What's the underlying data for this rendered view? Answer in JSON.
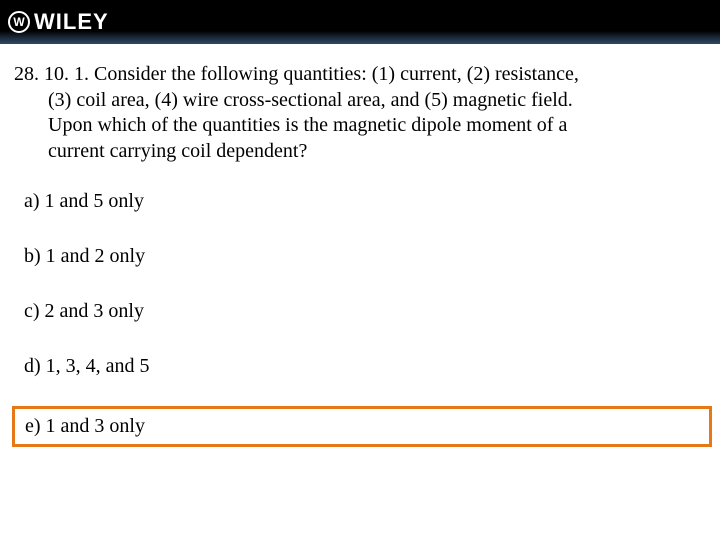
{
  "header": {
    "logo_text": "WILEY",
    "logo_icon_glyph": "W"
  },
  "question": {
    "number": "28. 10. 1.",
    "line1": "28. 10. 1. Consider the following quantities: (1) current, (2) resistance,",
    "line2": "(3) coil area, (4) wire cross-sectional area, and (5) magnetic field.",
    "line3": "Upon which of the quantities is the magnetic dipole moment of a",
    "line4": "current carrying coil dependent?"
  },
  "options": [
    {
      "label": "a)  1 and 5 only",
      "highlighted": false
    },
    {
      "label": "b)  1 and 2 only",
      "highlighted": false
    },
    {
      "label": "c)  2 and 3 only",
      "highlighted": false
    },
    {
      "label": "d)  1, 3, 4, and 5",
      "highlighted": false
    },
    {
      "label": "e)  1 and 3 only",
      "highlighted": true
    }
  ],
  "colors": {
    "highlight_border": "#e67817",
    "header_bg_top": "#000000",
    "header_bg_bottom": "#2e4a66",
    "text": "#000000",
    "logo": "#ffffff",
    "page_bg": "#ffffff"
  }
}
